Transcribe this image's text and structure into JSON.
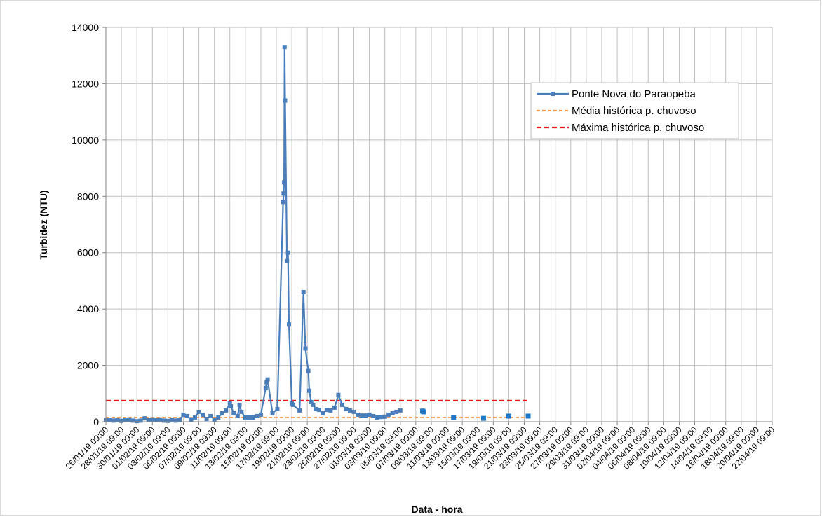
{
  "chart_data": {
    "type": "line",
    "title": "",
    "xlabel": "Data - hora",
    "ylabel": "Turbidez (NTU)",
    "ylim": [
      0,
      14000
    ],
    "yticks": [
      0,
      2000,
      4000,
      6000,
      8000,
      10000,
      12000,
      14000
    ],
    "x_range": [
      "2019-01-26",
      "2019-04-22"
    ],
    "x_tick_labels": [
      "26/01/19 09:00",
      "28/01/19 09:00",
      "30/01/19 09:00",
      "01/02/19 09:00",
      "03/02/19 09:00",
      "05/02/19 09:00",
      "07/02/19 09:00",
      "09/02/19 09:00",
      "11/02/19 09:00",
      "13/02/19 09:00",
      "15/02/19 09:00",
      "17/02/19 09:00",
      "19/02/19 09:00",
      "21/02/19 09:00",
      "23/02/19 09:00",
      "25/02/19 09:00",
      "27/02/19 09:00",
      "01/03/19 09:00",
      "03/03/19 09:00",
      "05/03/19 09:00",
      "07/03/19 09:00",
      "09/03/19 09:00",
      "11/03/19 09:00",
      "13/03/19 09:00",
      "15/03/19 09:00",
      "17/03/19 09:00",
      "19/03/19 09:00",
      "21/03/19 09:00",
      "23/03/19 09:00",
      "25/03/19 09:00",
      "27/03/19 09:00",
      "29/03/19 09:00",
      "31/03/19 09:00",
      "02/04/19 09:00",
      "04/04/19 09:00",
      "06/04/19 09:00",
      "08/04/19 09:00",
      "10/04/19 09:00",
      "12/04/19 09:00",
      "14/04/19 09:00",
      "16/04/19 09:00",
      "18/04/19 09:00",
      "20/04/19 09:00",
      "22/04/19 09:00"
    ],
    "grid": true,
    "legend": "top-right",
    "series": [
      {
        "name": "Ponte Nova do Paraopeba",
        "color": "#4a7ebb",
        "style": "line-markers",
        "points": [
          [
            "2019-01-26 09:00",
            60
          ],
          [
            "2019-01-26 21:00",
            50
          ],
          [
            "2019-01-27 09:00",
            40
          ],
          [
            "2019-01-27 21:00",
            50
          ],
          [
            "2019-01-28 09:00",
            30
          ],
          [
            "2019-01-28 21:00",
            60
          ],
          [
            "2019-01-29 09:00",
            80
          ],
          [
            "2019-01-29 21:00",
            40
          ],
          [
            "2019-01-30 09:00",
            20
          ],
          [
            "2019-01-30 21:00",
            40
          ],
          [
            "2019-01-31 09:00",
            120
          ],
          [
            "2019-01-31 21:00",
            70
          ],
          [
            "2019-02-01 09:00",
            80
          ],
          [
            "2019-02-01 21:00",
            60
          ],
          [
            "2019-02-02 09:00",
            80
          ],
          [
            "2019-02-02 21:00",
            40
          ],
          [
            "2019-02-03 09:00",
            30
          ],
          [
            "2019-02-03 21:00",
            50
          ],
          [
            "2019-02-04 09:00",
            40
          ],
          [
            "2019-02-04 21:00",
            50
          ],
          [
            "2019-02-05 09:00",
            250
          ],
          [
            "2019-02-05 21:00",
            200
          ],
          [
            "2019-02-06 09:00",
            80
          ],
          [
            "2019-02-06 21:00",
            150
          ],
          [
            "2019-02-07 09:00",
            350
          ],
          [
            "2019-02-07 21:00",
            250
          ],
          [
            "2019-02-08 09:00",
            100
          ],
          [
            "2019-02-08 21:00",
            200
          ],
          [
            "2019-02-09 09:00",
            80
          ],
          [
            "2019-02-09 21:00",
            150
          ],
          [
            "2019-02-10 09:00",
            300
          ],
          [
            "2019-02-10 21:00",
            400
          ],
          [
            "2019-02-11 09:00",
            650
          ],
          [
            "2019-02-11 12:00",
            550
          ],
          [
            "2019-02-11 21:00",
            300
          ],
          [
            "2019-02-12 09:00",
            200
          ],
          [
            "2019-02-12 15:00",
            600
          ],
          [
            "2019-02-12 21:00",
            350
          ],
          [
            "2019-02-13 09:00",
            150
          ],
          [
            "2019-02-13 21:00",
            150
          ],
          [
            "2019-02-14 09:00",
            150
          ],
          [
            "2019-02-14 21:00",
            200
          ],
          [
            "2019-02-15 09:00",
            250
          ],
          [
            "2019-02-16 00:00",
            1200
          ],
          [
            "2019-02-16 03:00",
            1400
          ],
          [
            "2019-02-16 06:00",
            1500
          ],
          [
            "2019-02-16 21:00",
            300
          ],
          [
            "2019-02-17 12:00",
            450
          ],
          [
            "2019-02-18 06:00",
            7800
          ],
          [
            "2019-02-18 07:30",
            8100
          ],
          [
            "2019-02-18 09:00",
            8500
          ],
          [
            "2019-02-18 10:30",
            13300
          ],
          [
            "2019-02-18 12:00",
            11400
          ],
          [
            "2019-02-18 18:00",
            5700
          ],
          [
            "2019-02-18 21:00",
            6000
          ],
          [
            "2019-02-19 00:00",
            3450
          ],
          [
            "2019-02-19 09:00",
            650
          ],
          [
            "2019-02-19 12:00",
            600
          ],
          [
            "2019-02-20 09:00",
            400
          ],
          [
            "2019-02-20 21:00",
            4600
          ],
          [
            "2019-02-21 03:00",
            2600
          ],
          [
            "2019-02-21 12:00",
            1800
          ],
          [
            "2019-02-21 15:00",
            1100
          ],
          [
            "2019-02-21 21:00",
            700
          ],
          [
            "2019-02-22 03:00",
            600
          ],
          [
            "2019-02-22 12:00",
            450
          ],
          [
            "2019-02-22 21:00",
            420
          ],
          [
            "2019-02-23 09:00",
            300
          ],
          [
            "2019-02-23 21:00",
            420
          ],
          [
            "2019-02-24 09:00",
            400
          ],
          [
            "2019-02-24 21:00",
            500
          ],
          [
            "2019-02-25 09:00",
            950
          ],
          [
            "2019-02-25 21:00",
            600
          ],
          [
            "2019-02-26 09:00",
            450
          ],
          [
            "2019-02-26 21:00",
            400
          ],
          [
            "2019-02-27 09:00",
            350
          ],
          [
            "2019-02-27 21:00",
            250
          ],
          [
            "2019-02-28 09:00",
            220
          ],
          [
            "2019-02-28 21:00",
            220
          ],
          [
            "2019-03-01 09:00",
            250
          ],
          [
            "2019-03-01 21:00",
            200
          ],
          [
            "2019-03-02 09:00",
            150
          ],
          [
            "2019-03-02 21:00",
            170
          ],
          [
            "2019-03-03 09:00",
            180
          ],
          [
            "2019-03-03 21:00",
            250
          ],
          [
            "2019-03-04 09:00",
            300
          ],
          [
            "2019-03-04 21:00",
            350
          ],
          [
            "2019-03-05 09:00",
            400
          ]
        ]
      },
      {
        "name": "",
        "color": "#1f77c8",
        "style": "markers",
        "points": [
          [
            "2019-03-08 06:00",
            380
          ],
          [
            "2019-03-08 09:00",
            350
          ],
          [
            "2019-03-12 06:00",
            150
          ],
          [
            "2019-03-16 03:00",
            120
          ],
          [
            "2019-03-19 09:00",
            200
          ],
          [
            "2019-03-21 21:00",
            200
          ]
        ]
      },
      {
        "name": "Média histórica p. chuvoso",
        "color": "#f79646",
        "style": "dashed",
        "x": [
          "2019-01-26 09:00",
          "2019-03-21 21:00"
        ],
        "value": 150
      },
      {
        "name": "Máxima histórica p. chuvoso",
        "color": "#e41a1c",
        "style": "dashed",
        "x": [
          "2019-01-26 09:00",
          "2019-03-21 21:00"
        ],
        "value": 750
      }
    ]
  }
}
